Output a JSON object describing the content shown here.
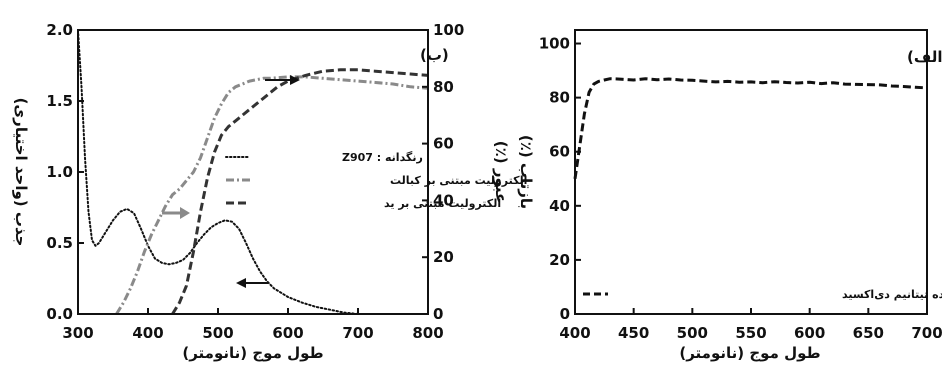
{
  "chart_data": [
    {
      "type": "line",
      "panel_label": "(ب)",
      "xlabel": "طول موج (نانومتر)",
      "ylabel_left": "جذب (واحد اختیاری)",
      "ylabel_right": "عبور (٪)",
      "xlim": [
        300,
        800
      ],
      "ylim_left": [
        0,
        2.0
      ],
      "ylim_right": [
        0,
        100
      ],
      "xticks": [
        "300",
        "400",
        "500",
        "600",
        "700",
        "800"
      ],
      "yticks_left": [
        "0.0",
        "0.5",
        "1.0",
        "1.5",
        "2.0"
      ],
      "yticks_right": [
        "0",
        "20",
        "40",
        "60",
        "80",
        "100"
      ],
      "grid": false,
      "legend_position": "center",
      "series": [
        {
          "name": "رنگدانه : Z907",
          "axis": "left",
          "style": "dotted",
          "color": "#111111",
          "x": [
            300,
            305,
            310,
            315,
            320,
            325,
            330,
            340,
            350,
            360,
            370,
            380,
            390,
            400,
            410,
            420,
            430,
            440,
            450,
            460,
            470,
            480,
            490,
            500,
            510,
            520,
            530,
            540,
            550,
            560,
            570,
            580,
            590,
            600,
            620,
            640,
            660,
            680,
            700,
            720,
            740
          ],
          "y": [
            2.0,
            1.6,
            1.1,
            0.72,
            0.52,
            0.48,
            0.5,
            0.58,
            0.66,
            0.72,
            0.74,
            0.71,
            0.6,
            0.48,
            0.39,
            0.36,
            0.35,
            0.36,
            0.38,
            0.43,
            0.5,
            0.56,
            0.61,
            0.64,
            0.66,
            0.65,
            0.6,
            0.5,
            0.39,
            0.3,
            0.23,
            0.18,
            0.15,
            0.12,
            0.08,
            0.05,
            0.03,
            0.01,
            0.0,
            0.0,
            0.0
          ]
        },
        {
          "name": "الکترولیت مبتنی بر کبالت",
          "axis": "right",
          "style": "dash-dot",
          "color": "#8a8a8a",
          "x": [
            355,
            365,
            375,
            385,
            395,
            405,
            415,
            425,
            435,
            445,
            455,
            465,
            475,
            485,
            495,
            505,
            515,
            525,
            535,
            545,
            555,
            565,
            575,
            600,
            625,
            650,
            675,
            700,
            725,
            750,
            775,
            800
          ],
          "y": [
            0,
            4,
            9,
            15,
            22,
            28,
            33,
            38,
            42,
            44,
            47,
            50,
            55,
            62,
            69,
            74,
            78,
            80,
            81,
            82,
            82.5,
            83,
            83,
            83.5,
            83.5,
            83,
            82.5,
            82,
            81.5,
            81,
            80,
            79.5
          ]
        },
        {
          "name": "الکترولیت مبتنی بر ید",
          "axis": "right",
          "style": "dashed",
          "color": "#333333",
          "x": [
            435,
            445,
            455,
            465,
            475,
            485,
            495,
            505,
            515,
            525,
            535,
            545,
            555,
            565,
            575,
            585,
            600,
            625,
            650,
            675,
            700,
            725,
            750,
            775,
            800
          ],
          "y": [
            0,
            4,
            10,
            22,
            36,
            48,
            57,
            63,
            66,
            68,
            70,
            72,
            74,
            76,
            78,
            80,
            82,
            84,
            85.5,
            86,
            86,
            85.5,
            85,
            84.5,
            84
          ]
        }
      ]
    },
    {
      "type": "line",
      "panel_label": "(الف)",
      "xlabel": "طول موج (نانومتر)",
      "ylabel": "بازتاب (٪)",
      "xlim": [
        400,
        700
      ],
      "ylim": [
        0,
        105
      ],
      "xticks": [
        "400",
        "450",
        "500",
        "550",
        "600",
        "650",
        "700"
      ],
      "yticks": [
        "0",
        "20",
        "40",
        "60",
        "80",
        "100"
      ],
      "grid": false,
      "legend_position": "bottom-right",
      "series": [
        {
          "name": "لایه پس پراکننده تیتانیم دی‌اکسید",
          "style": "dashed",
          "color": "#111111",
          "x": [
            400,
            404,
            408,
            412,
            416,
            420,
            425,
            430,
            440,
            450,
            460,
            470,
            480,
            490,
            500,
            510,
            520,
            530,
            540,
            550,
            560,
            570,
            580,
            590,
            600,
            610,
            620,
            630,
            640,
            650,
            660,
            670,
            680,
            690,
            700
          ],
          "y": [
            50,
            62,
            74,
            82,
            85,
            86,
            86.5,
            87,
            86.8,
            86.5,
            87,
            86.6,
            86.9,
            86.5,
            86.4,
            86.1,
            85.8,
            86,
            85.7,
            85.8,
            85.5,
            85.9,
            85.6,
            85.4,
            85.7,
            85.2,
            85.5,
            85,
            84.9,
            84.8,
            84.7,
            84.3,
            84.1,
            83.8,
            83.6
          ]
        }
      ]
    }
  ]
}
